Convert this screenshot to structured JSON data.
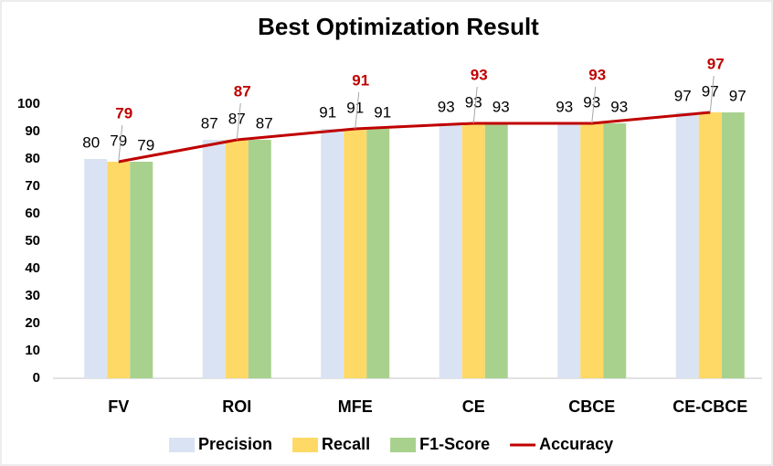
{
  "chart_data": {
    "type": "bar",
    "title": "Best Optimization Result",
    "categories": [
      "FV",
      "ROI",
      "MFE",
      "CE",
      "CBCE",
      "CE-CBCE"
    ],
    "series": [
      {
        "name": "Precision",
        "color": "#dae3f3",
        "values": [
          80,
          87,
          91,
          93,
          93,
          97
        ]
      },
      {
        "name": "Recall",
        "color": "#ffd966",
        "values": [
          79,
          87,
          91,
          93,
          93,
          97
        ]
      },
      {
        "name": "F1-Score",
        "color": "#a9d18e",
        "values": [
          79,
          87,
          91,
          93,
          93,
          97
        ]
      },
      {
        "name": "Accuracy",
        "type": "line",
        "color": "#c00000",
        "values": [
          79,
          87,
          91,
          93,
          93,
          97
        ]
      }
    ],
    "ylim": [
      0,
      100
    ],
    "yticks": [
      0,
      10,
      20,
      30,
      40,
      50,
      60,
      70,
      80,
      90,
      100
    ],
    "grid": false,
    "legend": "bottom"
  }
}
